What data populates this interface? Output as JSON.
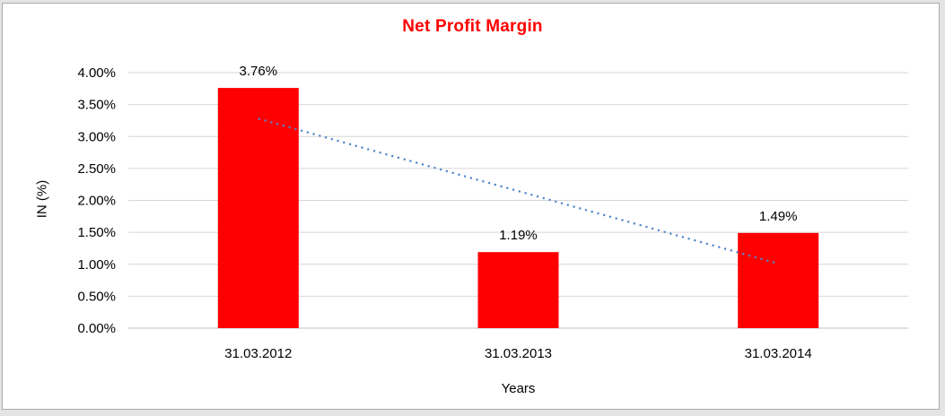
{
  "frame": {
    "outer_background": "#e4e4e4",
    "border_color": "#a9a9a9",
    "chart_background": "#ffffff"
  },
  "chart_data": {
    "type": "bar",
    "title": "Net Profit Margin",
    "title_color": "#ff0000",
    "xlabel": "Years",
    "ylabel": "IN (%)",
    "categories": [
      "31.03.2012",
      "31.03.2013",
      "31.03.2014"
    ],
    "values": [
      3.76,
      1.19,
      1.49
    ],
    "value_labels": [
      "3.76%",
      "1.19%",
      "1.49%"
    ],
    "bar_color": "#ff0000",
    "ylim": [
      0,
      4
    ],
    "ytick_step": 0.5,
    "ytick_labels": [
      "0.00%",
      "0.50%",
      "1.00%",
      "1.50%",
      "2.00%",
      "2.50%",
      "3.00%",
      "3.50%",
      "4.00%"
    ],
    "grid": true,
    "gridline_color": "#d6d6d6",
    "axis_line_color": "#c2c2c2",
    "text_color": "#000000",
    "legend": "none",
    "trendline": {
      "type": "linear",
      "style": "dotted",
      "color": "#4e87c8",
      "start_value": 3.28,
      "end_value": 1.01
    }
  }
}
